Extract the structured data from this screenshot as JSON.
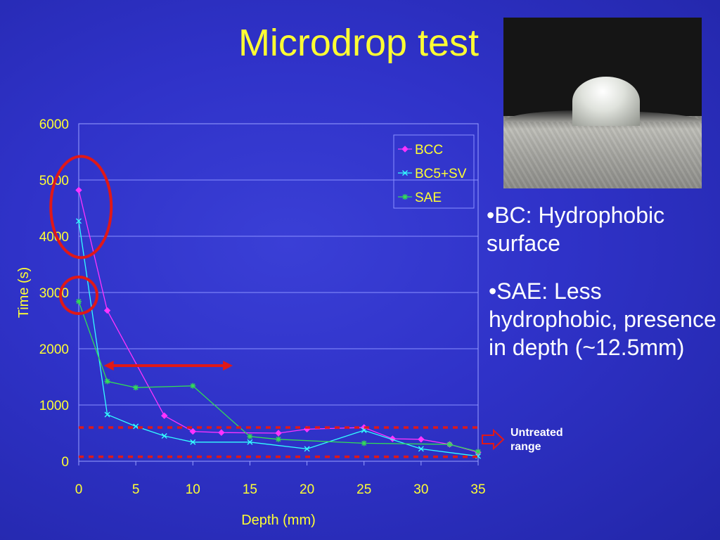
{
  "slide": {
    "title": "Microdrop test",
    "bullets": [
      "•BC: Hydrophobic surface",
      "•SAE: Less hydrophobic, presence in depth (~12.5mm)"
    ],
    "note": "Untreated range"
  },
  "colors": {
    "background": "#2f32c8",
    "title": "#ffff33",
    "axis_text": "#ffff33",
    "annotation_red": "#e01818"
  },
  "chart_data": {
    "type": "line",
    "xlabel": "Depth (mm)",
    "ylabel": "Time (s)",
    "xlim": [
      0,
      35
    ],
    "ylim": [
      0,
      6000
    ],
    "x_ticks": [
      0,
      5,
      10,
      15,
      20,
      25,
      30,
      35
    ],
    "y_ticks": [
      0,
      1000,
      2000,
      3000,
      4000,
      5000,
      6000
    ],
    "grid": "horizontal",
    "legend": "top-right",
    "series": [
      {
        "name": "BCC",
        "color": "#ff33ff",
        "marker": "diamond",
        "x": [
          0,
          2.5,
          7.5,
          10,
          12.5,
          17.5,
          20,
          25,
          27.5,
          30,
          32.5,
          35
        ],
        "y": [
          4820,
          2680,
          810,
          530,
          510,
          500,
          570,
          600,
          400,
          390,
          300,
          160
        ]
      },
      {
        "name": "BC5+SV",
        "color": "#33ffff",
        "marker": "x",
        "x": [
          0,
          2.5,
          5,
          7.5,
          10,
          15,
          20,
          25,
          30,
          35
        ],
        "y": [
          4270,
          830,
          620,
          450,
          340,
          340,
          220,
          550,
          220,
          90
        ]
      },
      {
        "name": "SAE",
        "color": "#33dd55",
        "marker": "star",
        "x": [
          0,
          2.5,
          5,
          10,
          15,
          17.5,
          25,
          32.5,
          35
        ],
        "y": [
          2840,
          1420,
          1310,
          1340,
          440,
          390,
          320,
          300,
          170
        ]
      }
    ],
    "annotations": {
      "untreated_range_lines_y": [
        600,
        80
      ],
      "double_arrow_x": [
        2.2,
        13.5
      ],
      "double_arrow_y": 1700,
      "ellipse_centers": [
        {
          "x": 0.2,
          "y": 4520
        },
        {
          "x": 0,
          "y": 2950
        }
      ]
    }
  }
}
